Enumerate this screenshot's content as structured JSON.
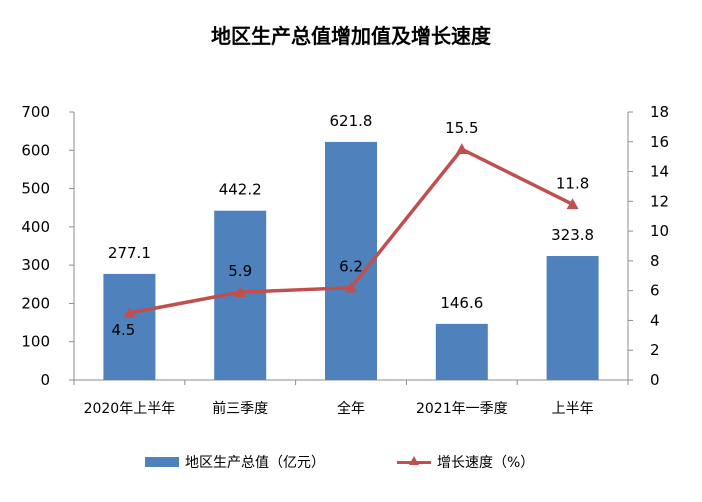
{
  "colors": {
    "bar": "#4f81bd",
    "line": "#c0504d",
    "axis": "#8c8c8c",
    "text": "#000000"
  },
  "chart_data": {
    "type": "bar",
    "title": "地区生产总值增加值及增长速度",
    "categories": [
      "2020年上半年",
      "前三季度",
      "全年",
      "2021年一季度",
      "上半年"
    ],
    "series": [
      {
        "name": "地区生产总值（亿元）",
        "type": "bar",
        "axis": "left",
        "values": [
          277.1,
          442.2,
          621.8,
          146.6,
          323.8
        ],
        "labels": [
          "277.1",
          "442.2",
          "621.8",
          "146.6",
          "323.8"
        ]
      },
      {
        "name": "增长速度（%）",
        "type": "line",
        "axis": "right",
        "marker": "triangle",
        "values": [
          4.5,
          5.9,
          6.2,
          15.5,
          11.8
        ],
        "labels": [
          "4.5",
          "5.9",
          "6.2",
          "15.5",
          "11.8"
        ]
      }
    ],
    "y_left": {
      "min": 0,
      "max": 700,
      "ticks": [
        "0",
        "100",
        "200",
        "300",
        "400",
        "500",
        "600",
        "700"
      ]
    },
    "y_right": {
      "min": 0,
      "max": 18,
      "ticks": [
        "0",
        "2",
        "4",
        "6",
        "8",
        "10",
        "12",
        "14",
        "16",
        "18"
      ]
    },
    "grid": false,
    "legend_position": "bottom"
  }
}
